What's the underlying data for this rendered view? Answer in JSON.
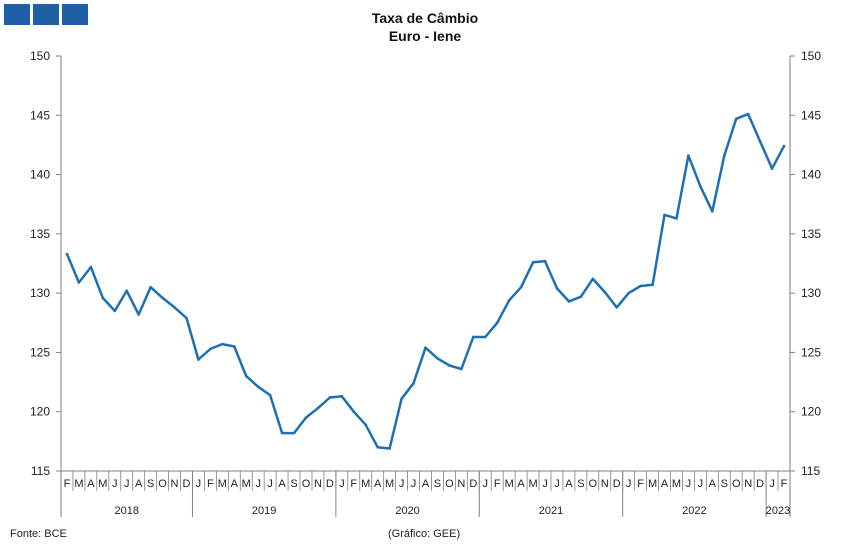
{
  "header": {
    "title": "Taxa de Câmbio",
    "subtitle": "Euro - Iene"
  },
  "footer": {
    "source": "Fonte: BCE",
    "credit": "(Gráfico: GEE)"
  },
  "colors": {
    "line": "#1f6fb4",
    "axis": "#7f7f7f",
    "logo": "#1f5fa6",
    "text": "#111111"
  },
  "chart_data": {
    "type": "line",
    "title": "Taxa de Câmbio",
    "subtitle": "Euro - Iene",
    "xlabel": "",
    "ylabel": "",
    "ylim": [
      115,
      150
    ],
    "yticks": [
      115,
      120,
      125,
      130,
      135,
      140,
      145,
      150
    ],
    "y_axis_sides": [
      "left",
      "right"
    ],
    "grid": false,
    "legend": "none",
    "month_labels": [
      "F",
      "M",
      "A",
      "M",
      "J",
      "J",
      "A",
      "S",
      "O",
      "N",
      "D",
      "J",
      "F",
      "M",
      "A",
      "M",
      "J",
      "J",
      "A",
      "S",
      "O",
      "N",
      "D",
      "J",
      "F",
      "M",
      "A",
      "M",
      "J",
      "J",
      "A",
      "S",
      "O",
      "N",
      "D",
      "J",
      "F",
      "M",
      "A",
      "M",
      "J",
      "J",
      "A",
      "S",
      "O",
      "N",
      "D",
      "J",
      "F",
      "M",
      "A",
      "M",
      "J",
      "J",
      "A",
      "S",
      "O",
      "N",
      "D",
      "J",
      "F"
    ],
    "year_labels": [
      {
        "label": "2018",
        "start": 0,
        "end": 10
      },
      {
        "label": "2019",
        "start": 11,
        "end": 22
      },
      {
        "label": "2020",
        "start": 23,
        "end": 34
      },
      {
        "label": "2021",
        "start": 35,
        "end": 46
      },
      {
        "label": "2022",
        "start": 47,
        "end": 58
      },
      {
        "label": "2023",
        "start": 59,
        "end": 60
      }
    ],
    "series": [
      {
        "values": [
          133.3,
          130.9,
          132.2,
          129.6,
          128.5,
          130.2,
          128.2,
          130.5,
          129.6,
          128.8,
          127.9,
          124.4,
          125.3,
          125.7,
          125.5,
          123.0,
          122.1,
          121.4,
          118.2,
          118.2,
          119.5,
          120.3,
          121.2,
          121.3,
          120.0,
          118.9,
          117.0,
          116.9,
          121.1,
          122.4,
          125.4,
          124.5,
          123.9,
          123.6,
          126.3,
          126.3,
          127.5,
          129.4,
          130.5,
          132.6,
          132.7,
          130.4,
          129.3,
          129.7,
          131.2,
          130.1,
          128.8,
          130.0,
          130.6,
          130.7,
          136.6,
          136.3,
          141.6,
          139.0,
          136.9,
          141.6,
          144.7,
          145.1,
          142.8,
          140.5,
          142.4
        ]
      }
    ]
  }
}
